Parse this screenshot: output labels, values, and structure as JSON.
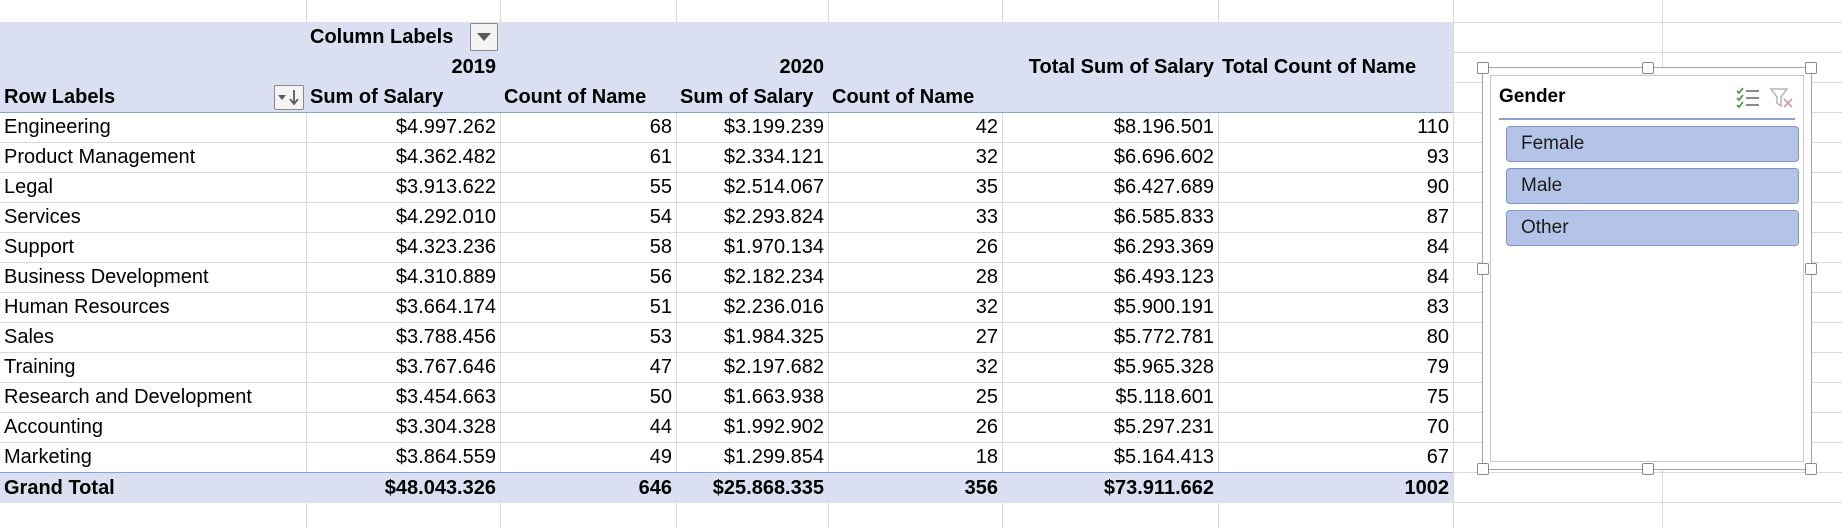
{
  "pivot": {
    "column_labels": "Column Labels",
    "row_labels": "Row Labels",
    "years": [
      "2019",
      "2020"
    ],
    "sub_headers": [
      "Sum of Salary",
      "Count of Name",
      "Sum of Salary",
      "Count of Name"
    ],
    "total_headers": [
      "Total Sum of Salary",
      "Total Count of Name"
    ],
    "rows": [
      {
        "label": "Engineering",
        "values": [
          "$4.997.262",
          "68",
          "$3.199.239",
          "42",
          "$8.196.501",
          "110"
        ]
      },
      {
        "label": "Product Management",
        "values": [
          "$4.362.482",
          "61",
          "$2.334.121",
          "32",
          "$6.696.602",
          "93"
        ]
      },
      {
        "label": "Legal",
        "values": [
          "$3.913.622",
          "55",
          "$2.514.067",
          "35",
          "$6.427.689",
          "90"
        ]
      },
      {
        "label": "Services",
        "values": [
          "$4.292.010",
          "54",
          "$2.293.824",
          "33",
          "$6.585.833",
          "87"
        ]
      },
      {
        "label": "Support",
        "values": [
          "$4.323.236",
          "58",
          "$1.970.134",
          "26",
          "$6.293.369",
          "84"
        ]
      },
      {
        "label": "Business Development",
        "values": [
          "$4.310.889",
          "56",
          "$2.182.234",
          "28",
          "$6.493.123",
          "84"
        ]
      },
      {
        "label": "Human Resources",
        "values": [
          "$3.664.174",
          "51",
          "$2.236.016",
          "32",
          "$5.900.191",
          "83"
        ]
      },
      {
        "label": "Sales",
        "values": [
          "$3.788.456",
          "53",
          "$1.984.325",
          "27",
          "$5.772.781",
          "80"
        ]
      },
      {
        "label": "Training",
        "values": [
          "$3.767.646",
          "47",
          "$2.197.682",
          "32",
          "$5.965.328",
          "79"
        ]
      },
      {
        "label": "Research and Development",
        "values": [
          "$3.454.663",
          "50",
          "$1.663.938",
          "25",
          "$5.118.601",
          "75"
        ]
      },
      {
        "label": "Accounting",
        "values": [
          "$3.304.328",
          "44",
          "$1.992.902",
          "26",
          "$5.297.231",
          "70"
        ]
      },
      {
        "label": "Marketing",
        "values": [
          "$3.864.559",
          "49",
          "$1.299.854",
          "18",
          "$5.164.413",
          "67"
        ]
      }
    ],
    "grand_total": {
      "label": "Grand Total",
      "values": [
        "$48.043.326",
        "646",
        "$25.868.335",
        "356",
        "$73.911.662",
        "1002"
      ]
    }
  },
  "slicer": {
    "title": "Gender",
    "items": [
      "Female",
      "Male",
      "Other"
    ],
    "multi_select_icon": "multi-select-icon",
    "clear_filter_icon": "clear-filter-icon"
  },
  "colors": {
    "header_band": "#dae0f1",
    "divider": "#8ea0d6",
    "slicer_item": "#b4c4e8",
    "slicer_item_border": "#8093c4"
  }
}
